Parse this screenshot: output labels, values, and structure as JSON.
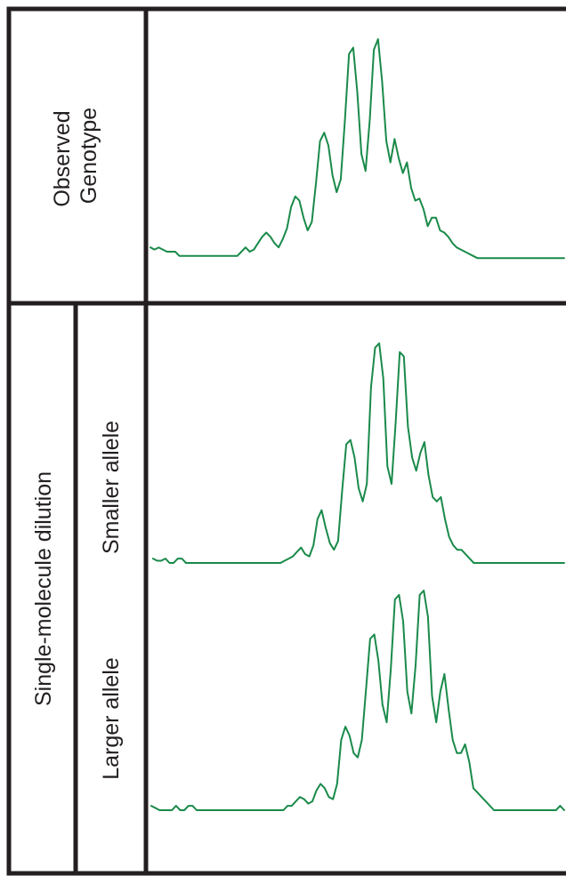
{
  "labels": {
    "top_line1": "Observed",
    "top_line2": "Genotype",
    "outer_bottom": "Single-molecule dilution",
    "inner_top": "Smaller allele",
    "inner_bottom": "Larger allele"
  },
  "colors": {
    "frame": "#231f20",
    "trace": "#1a8a4a"
  },
  "traces": [
    {
      "id": "observed-genotype",
      "values": [
        0.02,
        0.01,
        0.02,
        0.01,
        0.0,
        0.0,
        0.0,
        -0.02,
        -0.02,
        -0.02,
        -0.02,
        -0.02,
        -0.02,
        -0.02,
        -0.02,
        -0.02,
        -0.02,
        -0.02,
        -0.02,
        -0.02,
        -0.02,
        -0.02,
        0.0,
        0.02,
        0.0,
        0.01,
        0.04,
        0.07,
        0.09,
        0.07,
        0.04,
        0.02,
        0.06,
        0.11,
        0.21,
        0.26,
        0.24,
        0.16,
        0.1,
        0.14,
        0.32,
        0.52,
        0.56,
        0.5,
        0.36,
        0.28,
        0.34,
        0.62,
        0.93,
        0.96,
        0.75,
        0.46,
        0.38,
        0.62,
        0.95,
        1.0,
        0.8,
        0.52,
        0.42,
        0.53,
        0.44,
        0.37,
        0.42,
        0.3,
        0.24,
        0.25,
        0.2,
        0.12,
        0.16,
        0.16,
        0.1,
        0.09,
        0.07,
        0.04,
        0.02,
        0.01,
        0.0,
        -0.01,
        -0.02,
        -0.03,
        -0.03,
        -0.03,
        -0.03,
        -0.03,
        -0.03,
        -0.03,
        -0.03,
        -0.03,
        -0.03,
        -0.03,
        -0.03,
        -0.03,
        -0.03,
        -0.03,
        -0.03,
        -0.03,
        -0.03,
        -0.03,
        -0.03,
        -0.03,
        -0.03
      ]
    },
    {
      "id": "smaller-allele",
      "values": [
        0.02,
        0.01,
        0.01,
        0.02,
        0.0,
        0.0,
        0.02,
        0.02,
        0.0,
        0.0,
        0.0,
        0.0,
        0.0,
        0.0,
        0.0,
        0.0,
        0.0,
        0.0,
        0.0,
        0.0,
        0.0,
        0.0,
        0.0,
        0.0,
        0.0,
        0.0,
        0.0,
        0.0,
        0.0,
        0.0,
        0.0,
        0.0,
        0.01,
        0.02,
        0.03,
        0.05,
        0.07,
        0.04,
        0.03,
        0.08,
        0.2,
        0.24,
        0.16,
        0.09,
        0.06,
        0.1,
        0.33,
        0.54,
        0.56,
        0.48,
        0.34,
        0.28,
        0.36,
        0.8,
        0.98,
        1.0,
        0.84,
        0.44,
        0.36,
        0.64,
        0.96,
        0.94,
        0.62,
        0.48,
        0.42,
        0.5,
        0.55,
        0.4,
        0.3,
        0.28,
        0.3,
        0.2,
        0.12,
        0.08,
        0.06,
        0.06,
        0.04,
        0.02,
        0.0,
        0.0,
        0.0,
        0.0,
        0.0,
        0.0,
        0.0,
        0.0,
        0.0,
        0.0,
        0.0,
        0.0,
        0.0,
        0.0,
        0.0,
        0.0,
        0.0,
        0.0,
        0.0,
        0.0,
        0.0,
        0.0,
        0.0
      ]
    },
    {
      "id": "larger-allele",
      "values": [
        0.02,
        0.01,
        0.0,
        0.0,
        0.0,
        0.0,
        0.02,
        0.0,
        0.0,
        0.02,
        0.02,
        0.0,
        0.0,
        0.0,
        0.0,
        0.0,
        0.0,
        0.0,
        0.0,
        0.0,
        0.0,
        0.0,
        0.0,
        0.0,
        0.0,
        0.0,
        0.0,
        0.0,
        0.0,
        0.0,
        0.0,
        0.0,
        0.0,
        0.02,
        0.02,
        0.04,
        0.06,
        0.05,
        0.03,
        0.04,
        0.09,
        0.12,
        0.1,
        0.06,
        0.05,
        0.12,
        0.32,
        0.38,
        0.34,
        0.26,
        0.24,
        0.32,
        0.55,
        0.78,
        0.8,
        0.68,
        0.48,
        0.4,
        0.64,
        0.96,
        0.98,
        0.86,
        0.54,
        0.44,
        0.66,
        0.98,
        1.0,
        0.88,
        0.52,
        0.4,
        0.54,
        0.62,
        0.46,
        0.32,
        0.26,
        0.26,
        0.3,
        0.22,
        0.1,
        0.08,
        0.06,
        0.04,
        0.02,
        0.0,
        0.0,
        0.0,
        0.0,
        0.0,
        0.0,
        0.0,
        0.0,
        0.0,
        0.0,
        0.0,
        0.0,
        0.0,
        0.0,
        0.0,
        0.0,
        0.02,
        0.0
      ]
    }
  ]
}
